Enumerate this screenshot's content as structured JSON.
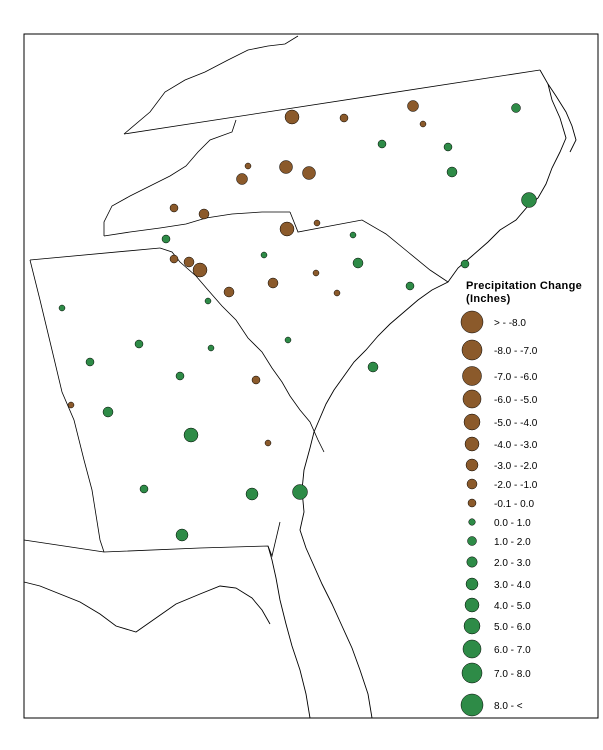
{
  "legend": {
    "title_line1": "Precipitation Change",
    "title_line2": "(Inches)",
    "classes": [
      {
        "label": "> - -8.0",
        "color": "#8B5A2B"
      },
      {
        "label": "-8.0 - -7.0",
        "color": "#8B5A2B"
      },
      {
        "label": "-7.0 - -6.0",
        "color": "#8B5A2B"
      },
      {
        "label": "-6.0 - -5.0",
        "color": "#8B5A2B"
      },
      {
        "label": "-5.0 - -4.0",
        "color": "#8B5A2B"
      },
      {
        "label": "-4.0 - -3.0",
        "color": "#8B5A2B"
      },
      {
        "label": "-3.0 - -2.0",
        "color": "#8B5A2B"
      },
      {
        "label": "-2.0 - -1.0",
        "color": "#8B5A2B"
      },
      {
        "label": "-0.1 - 0.0",
        "color": "#8B5A2B"
      },
      {
        "label": "0.0 - 1.0",
        "color": "#2E8B47"
      },
      {
        "label": "1.0 - 2.0",
        "color": "#2E8B47"
      },
      {
        "label": "2.0 - 3.0",
        "color": "#2E8B47"
      },
      {
        "label": "3.0 - 4.0",
        "color": "#2E8B47"
      },
      {
        "label": "4.0 - 5.0",
        "color": "#2E8B47"
      },
      {
        "label": "5.0 - 6.0",
        "color": "#2E8B47"
      },
      {
        "label": "6.0 - 7.0",
        "color": "#2E8B47"
      },
      {
        "label": "7.0 - 8.0",
        "color": "#2E8B47"
      },
      {
        "label": "8.0 - <",
        "color": "#2E8B47"
      }
    ]
  },
  "colors": {
    "decrease": "#8B5A2B",
    "increase": "#2E8B47",
    "boundary": "#000000",
    "background": "#ffffff"
  }
}
